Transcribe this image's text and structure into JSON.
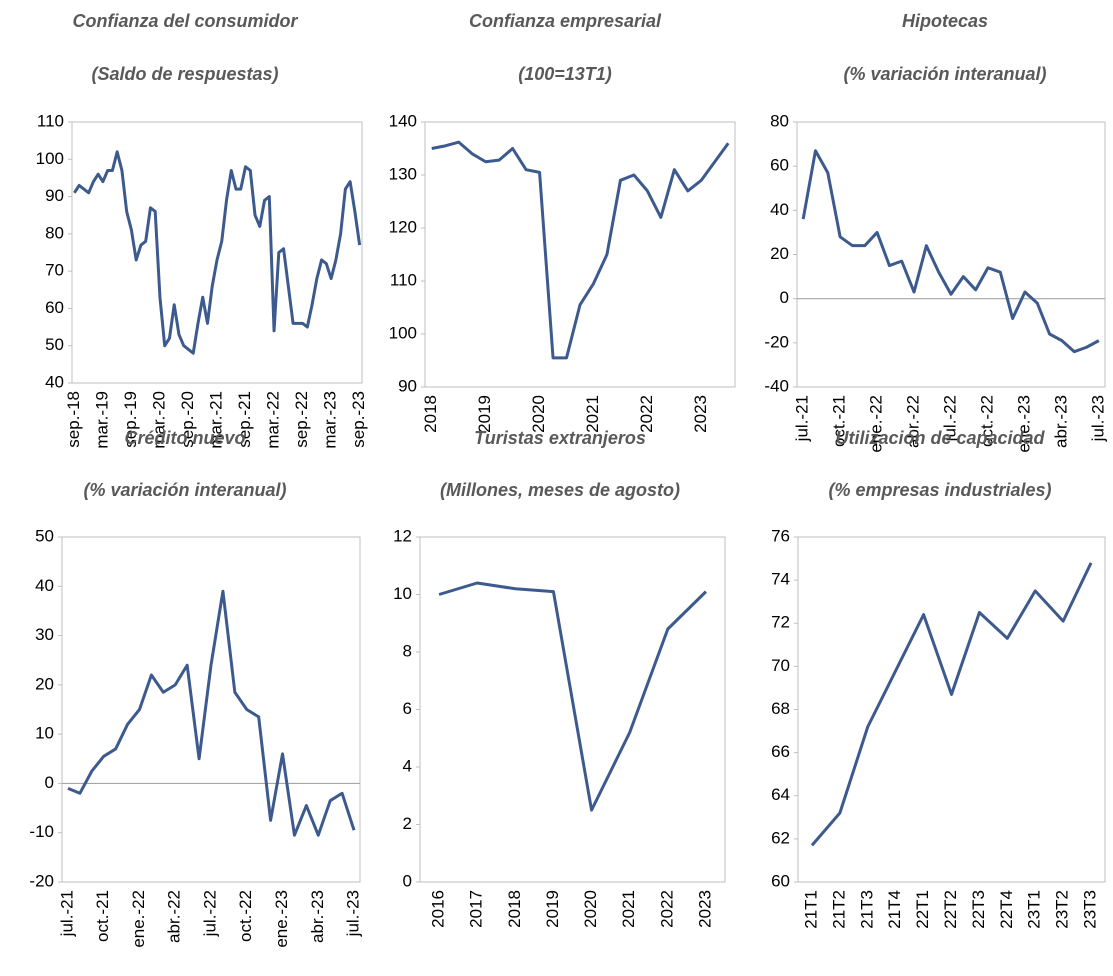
{
  "chart_data": [
    {
      "type": "line",
      "title": "Confianza del consumidor",
      "subtitle": "(Saldo de respuestas)",
      "color": "#3d5a8f",
      "categories": [
        "sep.-18",
        null,
        null,
        null,
        null,
        null,
        "mar.-19",
        null,
        null,
        null,
        null,
        null,
        "sep.-19",
        null,
        null,
        null,
        null,
        null,
        "mar.-20",
        null,
        null,
        null,
        null,
        null,
        "sep.-20",
        null,
        null,
        null,
        null,
        null,
        "mar.-21",
        null,
        null,
        null,
        null,
        null,
        "sep.-21",
        null,
        null,
        null,
        null,
        null,
        "mar.-22",
        null,
        null,
        null,
        null,
        null,
        "sep.-22",
        null,
        null,
        null,
        null,
        null,
        "mar.-23",
        null,
        null,
        null,
        null,
        null,
        "sep.-23"
      ],
      "values": [
        91,
        93,
        92,
        91,
        94,
        96,
        94,
        97,
        97,
        102,
        97,
        86,
        81,
        73,
        77,
        78,
        87,
        86,
        63,
        50,
        52,
        61,
        53,
        50,
        49,
        48,
        56,
        63,
        56,
        66,
        73,
        78,
        89,
        97,
        92,
        92,
        98,
        97,
        85,
        82,
        89,
        90,
        54,
        75,
        76,
        66,
        56,
        56,
        56,
        55,
        61,
        68,
        73,
        72,
        68,
        73,
        80,
        92,
        94,
        86,
        77
      ],
      "ylim": [
        40,
        110
      ],
      "yticks": [
        40,
        50,
        60,
        70,
        80,
        90,
        100,
        110
      ]
    },
    {
      "type": "line",
      "title": "Confianza empresarial",
      "subtitle": "(100=13T1)",
      "color": "#3d5a8f",
      "categories": [
        "2018",
        null,
        null,
        null,
        "2019",
        null,
        null,
        null,
        "2020",
        null,
        null,
        null,
        "2021",
        null,
        null,
        null,
        "2022",
        null,
        null,
        null,
        "2023",
        null,
        null
      ],
      "values": [
        135,
        135.5,
        136.2,
        134,
        132.5,
        132.8,
        135,
        131,
        130.5,
        95.5,
        95.5,
        105.5,
        109.5,
        115,
        129,
        130,
        127,
        122,
        131,
        127,
        129,
        132.5,
        136
      ],
      "ylim": [
        90,
        140
      ],
      "yticks": [
        90,
        100,
        110,
        120,
        130,
        140
      ]
    },
    {
      "type": "line",
      "title": "Hipotecas",
      "subtitle": "(% variación interanual)",
      "color": "#3d5a8f",
      "categories": [
        "jul.-21",
        null,
        null,
        "oct.-21",
        null,
        null,
        "ene.-22",
        null,
        null,
        "abr.-22",
        null,
        null,
        "jul.-22",
        null,
        null,
        "oct.-22",
        null,
        null,
        "ene.-23",
        null,
        null,
        "abr.-23",
        null,
        null,
        "jul.-23"
      ],
      "values": [
        36,
        67,
        57,
        28,
        24,
        24,
        30,
        15,
        17,
        3,
        24,
        12,
        2,
        10,
        4,
        14,
        12,
        -9,
        3,
        -2,
        -16,
        -19,
        -24,
        -22,
        -19
      ],
      "ylim": [
        -40,
        80
      ],
      "yticks": [
        -40,
        -20,
        0,
        20,
        40,
        60,
        80
      ]
    },
    {
      "type": "line",
      "title": "Crédito nuevo",
      "subtitle": "(% variación interanual)",
      "color": "#3d5a8f",
      "categories": [
        "jul.-21",
        null,
        null,
        "oct.-21",
        null,
        null,
        "ene.-22",
        null,
        null,
        "abr.-22",
        null,
        null,
        "jul.-22",
        null,
        null,
        "oct.-22",
        null,
        null,
        "ene.-23",
        null,
        null,
        "abr.-23",
        null,
        null,
        "jul.-23"
      ],
      "values": [
        -1,
        -2,
        2.5,
        5.5,
        7,
        12,
        15,
        22,
        18.5,
        20,
        24,
        5,
        24,
        39,
        18.5,
        15,
        13.5,
        -7.5,
        6,
        -10.5,
        -4.5,
        -10.5,
        -3.5,
        -2,
        -9.5
      ],
      "ylim": [
        -20,
        50
      ],
      "yticks": [
        -20,
        -10,
        0,
        10,
        20,
        30,
        40,
        50
      ]
    },
    {
      "type": "line",
      "title": "Turistas extranjeros",
      "subtitle": "(Millones, meses de agosto)",
      "color": "#3d5a8f",
      "categories": [
        "2016",
        "2017",
        "2018",
        "2019",
        "2020",
        "2021",
        "2022",
        "2023"
      ],
      "values": [
        10.0,
        10.4,
        10.2,
        10.1,
        2.5,
        5.2,
        8.8,
        10.1
      ],
      "ylim": [
        0,
        12
      ],
      "yticks": [
        0,
        2,
        4,
        6,
        8,
        10,
        12
      ]
    },
    {
      "type": "line",
      "title": "Utilización de capacidad",
      "subtitle": "(% empresas industriales)",
      "color": "#3d5a8f",
      "categories": [
        "21T1",
        "21T2",
        "21T3",
        "21T4",
        "22T1",
        "22T2",
        "22T3",
        "22T4",
        "23T1",
        "23T2",
        "23T3"
      ],
      "values": [
        61.7,
        63.2,
        67.2,
        69.8,
        72.4,
        68.7,
        72.5,
        71.3,
        73.5,
        72.1,
        74.8
      ],
      "ylim": [
        60,
        76
      ],
      "yticks": [
        60,
        62,
        64,
        66,
        68,
        70,
        72,
        74,
        76
      ]
    }
  ]
}
